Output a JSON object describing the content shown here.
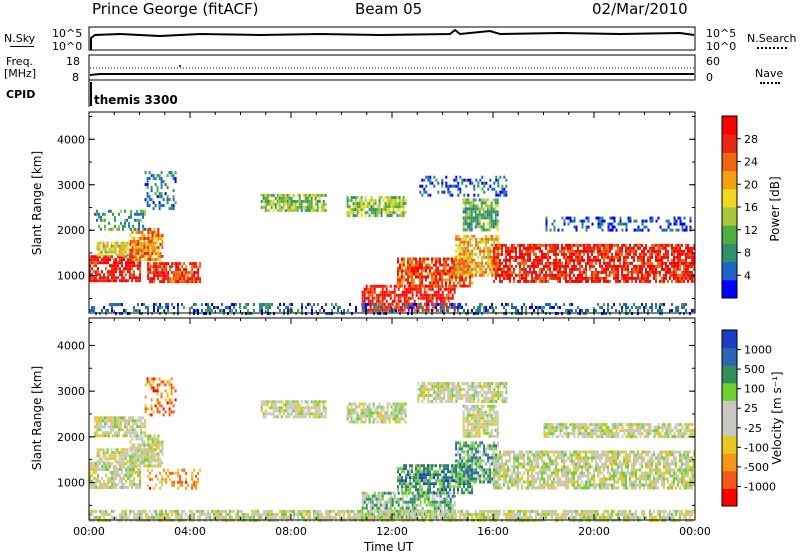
{
  "header": {
    "station": "Prince George (fitACF)",
    "beam": "Beam 05",
    "date": "02/Mar/2010"
  },
  "top_panels": {
    "nsky_label": "N.Sky",
    "nsearch_label": "N.Search",
    "nsky_ticks": [
      "10^5",
      "10^0"
    ],
    "nsearch_ticks": [
      "10^5",
      "10^0"
    ],
    "freq_label": "Freq.",
    "freq_unit": "[MHz]",
    "freq_ticks": [
      "18",
      "8"
    ],
    "nave_label": "Nave",
    "nave_ticks": [
      "60",
      "0"
    ],
    "cpid_label": "CPID",
    "cpid_value": "themis 3300"
  },
  "chart_data": [
    {
      "type": "heatmap",
      "name": "power",
      "xlabel": "",
      "ylabel": "Slant Range [km]",
      "x_range_hours": [
        0,
        24
      ],
      "ylim": [
        180,
        4600
      ],
      "yticks": [
        1000,
        2000,
        3000,
        4000
      ],
      "colorbar_label": "Power [dB]",
      "colorbar_ticks": [
        "28",
        "24",
        "20",
        "16",
        "12",
        "8",
        "4"
      ],
      "colors": [
        "#0000ff",
        "#1e64c8",
        "#2f8f6e",
        "#4fae3f",
        "#a7c83a",
        "#f0d81e",
        "#f5a014",
        "#f06414",
        "#e62814",
        "#ff0000"
      ],
      "regions": [
        {
          "t0": 0.0,
          "t1": 2.0,
          "r0": 900,
          "r1": 1450,
          "level": 0.92
        },
        {
          "t0": 0.3,
          "t1": 2.6,
          "r0": 1450,
          "r1": 1750,
          "level": 0.55
        },
        {
          "t0": 1.6,
          "t1": 2.9,
          "r0": 1350,
          "r1": 2050,
          "level": 0.72
        },
        {
          "t0": 2.3,
          "t1": 4.4,
          "r0": 850,
          "r1": 1300,
          "level": 0.85
        },
        {
          "t0": 0.2,
          "t1": 2.2,
          "r0": 2000,
          "r1": 2450,
          "level": 0.3
        },
        {
          "t0": 2.2,
          "t1": 3.4,
          "r0": 2500,
          "r1": 3300,
          "level": 0.2
        },
        {
          "t0": 6.8,
          "t1": 9.4,
          "r0": 2450,
          "r1": 2800,
          "level": 0.4
        },
        {
          "t0": 10.2,
          "t1": 12.5,
          "r0": 2350,
          "r1": 2750,
          "level": 0.4
        },
        {
          "t0": 10.8,
          "t1": 14.5,
          "r0": 250,
          "r1": 800,
          "level": 0.92
        },
        {
          "t0": 12.2,
          "t1": 15.2,
          "r0": 750,
          "r1": 1400,
          "level": 0.8
        },
        {
          "t0": 14.5,
          "t1": 16.2,
          "r0": 1000,
          "r1": 1900,
          "level": 0.62
        },
        {
          "t0": 14.8,
          "t1": 16.2,
          "r0": 2000,
          "r1": 2700,
          "level": 0.35
        },
        {
          "t0": 16.0,
          "t1": 24.0,
          "r0": 850,
          "r1": 1700,
          "level": 0.88
        },
        {
          "t0": 13.0,
          "t1": 16.5,
          "r0": 2800,
          "r1": 3200,
          "level": 0.15
        },
        {
          "t0": 18.0,
          "t1": 24.0,
          "r0": 2000,
          "r1": 2300,
          "level": 0.1
        },
        {
          "t0": 0.0,
          "t1": 24.0,
          "r0": 200,
          "r1": 400,
          "level": 0.18
        }
      ]
    },
    {
      "type": "heatmap",
      "name": "velocity",
      "xlabel": "Time UT",
      "ylabel": "Slant Range [km]",
      "x_range_hours": [
        0,
        24
      ],
      "xticks": [
        "00:00",
        "04:00",
        "08:00",
        "12:00",
        "16:00",
        "20:00",
        "00:00"
      ],
      "ylim": [
        180,
        4600
      ],
      "yticks": [
        1000,
        2000,
        3000,
        4000
      ],
      "colorbar_label": "Velocity [m s⁻¹]",
      "colorbar_ticks": [
        "1000",
        "500",
        "100",
        "25",
        "-25",
        "-100",
        "-500",
        "-1000"
      ],
      "colors": [
        "#ff0000",
        "#f55a14",
        "#f59614",
        "#e6c81e",
        "#c8c8c0",
        "#c8c8c0",
        "#6ed232",
        "#2f8f5a",
        "#2d64b4",
        "#1e3cc8"
      ],
      "regions": [
        {
          "t0": 0.0,
          "t1": 2.0,
          "r0": 900,
          "r1": 1450,
          "level": 0.5
        },
        {
          "t0": 0.3,
          "t1": 2.6,
          "r0": 1450,
          "r1": 1750,
          "level": 0.48
        },
        {
          "t0": 1.6,
          "t1": 2.9,
          "r0": 1350,
          "r1": 2050,
          "level": 0.5
        },
        {
          "t0": 2.3,
          "t1": 4.4,
          "r0": 850,
          "r1": 1300,
          "level": 0.25
        },
        {
          "t0": 0.2,
          "t1": 2.2,
          "r0": 2000,
          "r1": 2450,
          "level": 0.5
        },
        {
          "t0": 2.2,
          "t1": 3.4,
          "r0": 2500,
          "r1": 3300,
          "level": 0.2
        },
        {
          "t0": 6.8,
          "t1": 9.4,
          "r0": 2450,
          "r1": 2800,
          "level": 0.5
        },
        {
          "t0": 10.2,
          "t1": 12.5,
          "r0": 2350,
          "r1": 2750,
          "level": 0.5
        },
        {
          "t0": 10.8,
          "t1": 14.5,
          "r0": 250,
          "r1": 800,
          "level": 0.66
        },
        {
          "t0": 12.2,
          "t1": 15.2,
          "r0": 750,
          "r1": 1400,
          "level": 0.75
        },
        {
          "t0": 14.5,
          "t1": 16.2,
          "r0": 1000,
          "r1": 1900,
          "level": 0.7
        },
        {
          "t0": 14.8,
          "t1": 16.2,
          "r0": 2000,
          "r1": 2700,
          "level": 0.5
        },
        {
          "t0": 16.0,
          "t1": 24.0,
          "r0": 850,
          "r1": 1700,
          "level": 0.5
        },
        {
          "t0": 13.0,
          "t1": 16.5,
          "r0": 2800,
          "r1": 3200,
          "level": 0.5
        },
        {
          "t0": 18.0,
          "t1": 24.0,
          "r0": 2000,
          "r1": 2300,
          "level": 0.5
        },
        {
          "t0": 0.0,
          "t1": 24.0,
          "r0": 200,
          "r1": 400,
          "level": 0.5
        }
      ]
    }
  ]
}
